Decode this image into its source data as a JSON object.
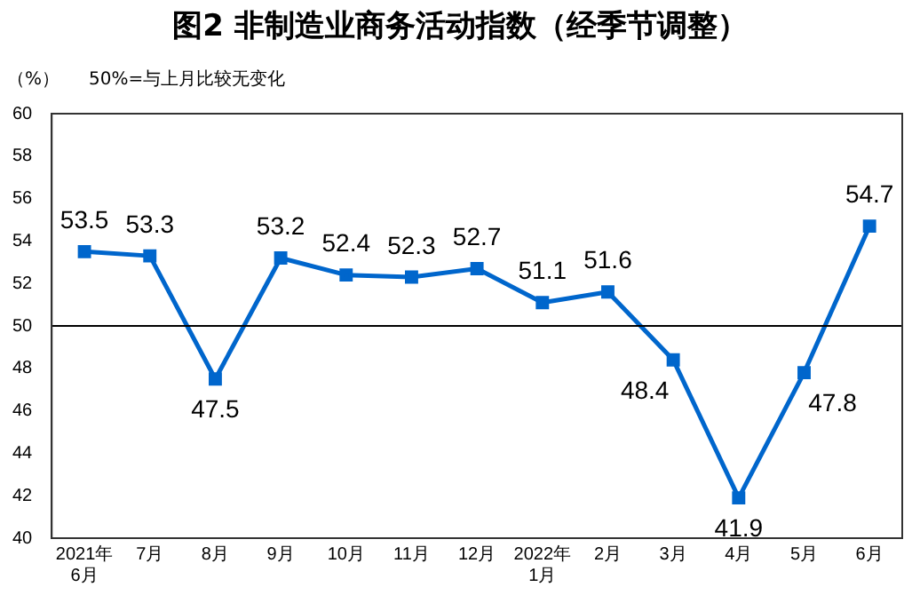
{
  "chart_data": {
    "type": "line",
    "title": "图2  非制造业商务活动指数（经季节调整）",
    "ylabel": "（%）",
    "annotations": [
      "50%=与上月比较无变化"
    ],
    "categories": [
      "2021年\n6月",
      "7月",
      "8月",
      "9月",
      "10月",
      "11月",
      "12月",
      "2022年\n1月",
      "2月",
      "3月",
      "4月",
      "5月",
      "6月"
    ],
    "values": [
      53.5,
      53.3,
      47.5,
      53.2,
      52.4,
      52.3,
      52.7,
      51.1,
      51.6,
      48.4,
      41.9,
      47.8,
      54.7
    ],
    "color": "#0066cc",
    "marker": "square",
    "line_style": "solid",
    "data_labels": true,
    "grid": false,
    "legend": false,
    "ylim": [
      40,
      60
    ],
    "yticks": [
      40,
      42,
      44,
      46,
      48,
      50,
      52,
      54,
      56,
      58,
      60
    ],
    "ref_lines": [
      {
        "axis": "y",
        "value": 50,
        "color": "#000000"
      }
    ]
  }
}
